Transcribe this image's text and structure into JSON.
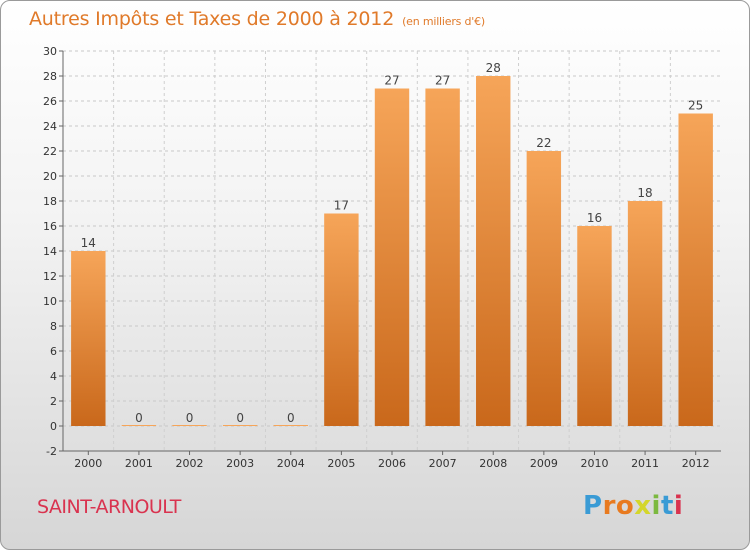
{
  "header": {
    "title": "Autres Impôts et Taxes de 2000 à 2012",
    "unit": "(en milliers d'€)"
  },
  "footer": {
    "commune": "SAINT-ARNOULT",
    "logo_letters": [
      "P",
      "r",
      "o",
      "x",
      "i",
      "t",
      "i"
    ]
  },
  "colors": {
    "title": "#e07a2a",
    "bar_light": "#f6a559",
    "bar_dark": "#c9681b",
    "commune": "#d9334f",
    "logo": [
      "#3a9bd5",
      "#e87a1f",
      "#e87a1f",
      "#d4d62a",
      "#7cb940",
      "#3a9bd5",
      "#d9334f"
    ]
  },
  "chart_data": {
    "type": "bar",
    "title": "Autres Impôts et Taxes de 2000 à 2012",
    "categories": [
      "2000",
      "2001",
      "2002",
      "2003",
      "2004",
      "2005",
      "2006",
      "2007",
      "2008",
      "2009",
      "2010",
      "2011",
      "2012"
    ],
    "values": [
      14,
      0,
      0,
      0,
      0,
      17,
      27,
      27,
      28,
      22,
      16,
      18,
      25
    ],
    "data_labels": [
      "14",
      "0",
      "0",
      "0",
      "0",
      "17",
      "27",
      "27",
      "28",
      "22",
      "16",
      "18",
      "25"
    ],
    "xlabel": "",
    "ylabel": "",
    "ylim": [
      -2,
      30
    ],
    "y_ticks": [
      "-2",
      "0",
      "2",
      "4",
      "6",
      "8",
      "10",
      "12",
      "14",
      "16",
      "18",
      "20",
      "22",
      "24",
      "26",
      "28",
      "30"
    ],
    "grid": "horizontal dashed"
  }
}
